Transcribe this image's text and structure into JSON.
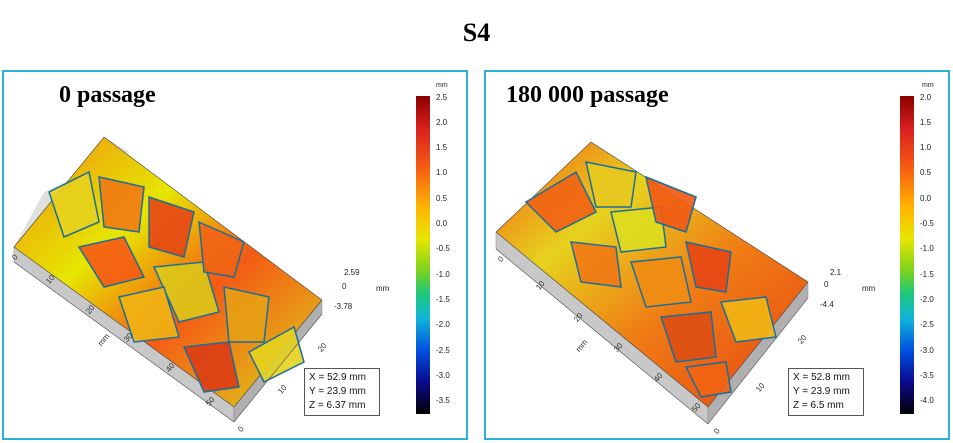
{
  "title": "S4",
  "panels": [
    {
      "title": "0 passage",
      "unit": "mm",
      "colorbar_ticks": [
        "2.5",
        "2.0",
        "1.5",
        "1.0",
        "0.5",
        "0.0",
        "-0.5",
        "-1.0",
        "-1.5",
        "-2.0",
        "-2.5",
        "-3.0",
        "-3.5"
      ],
      "z_range": {
        "top": "2.59",
        "mid": "0",
        "bottom": "-3.78",
        "unit": "mm"
      },
      "x_ticks": [
        "0",
        "10",
        "20",
        "30",
        "40",
        "50"
      ],
      "y_ticks": [
        "0",
        "10",
        "20"
      ],
      "axis_label": "mm",
      "info": {
        "x": "X = 52.9 mm",
        "y": "Y = 23.9 mm",
        "z": "Z = 6.37 mm"
      }
    },
    {
      "title": "180 000 passage",
      "unit": "mm",
      "colorbar_ticks": [
        "2.0",
        "1.5",
        "1.0",
        "0.5",
        "0.0",
        "-0.5",
        "-1.0",
        "-1.5",
        "-2.0",
        "-2.5",
        "-3.0",
        "-3.5",
        "-4.0"
      ],
      "z_range": {
        "top": "2.1",
        "mid": "0",
        "bottom": "-4.4",
        "unit": "mm"
      },
      "x_ticks": [
        "0",
        "10",
        "20",
        "30",
        "40",
        "50"
      ],
      "y_ticks": [
        "0",
        "10",
        "20"
      ],
      "axis_label": "mm",
      "info": {
        "x": "X = 52.8 mm",
        "y": "Y = 23.9 mm",
        "z": "Z = 6.5 mm"
      }
    }
  ]
}
